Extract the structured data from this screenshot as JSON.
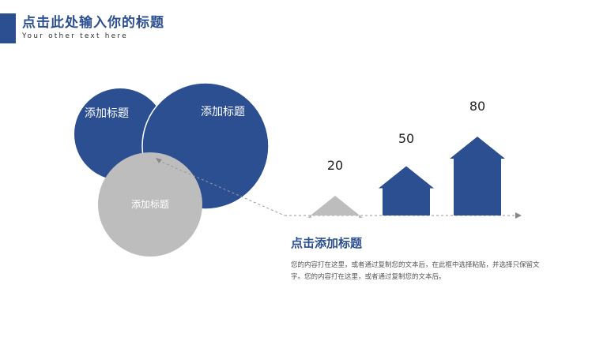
{
  "header": {
    "title": "点击此处输入你的标题",
    "subtitle": "Your other text here"
  },
  "circles": [
    {
      "label": "添加标题",
      "color": "#2c4f91"
    },
    {
      "label": "添加标题",
      "color": "#2c4f91"
    },
    {
      "label": "添加标题",
      "color": "#bdbdbd"
    }
  ],
  "chart_data": {
    "type": "bar",
    "values": [
      20,
      50,
      80
    ],
    "colors": [
      "#bdbdbd",
      "#2c4f91",
      "#2c4f91"
    ]
  },
  "section": {
    "title": "点击添加标题",
    "body": "您的内容打在这里，或者通过复制您的文本后，在此框中选择粘贴，并选择只保留文字。您的内容打在这里，或者通过复制您的文本后。"
  }
}
